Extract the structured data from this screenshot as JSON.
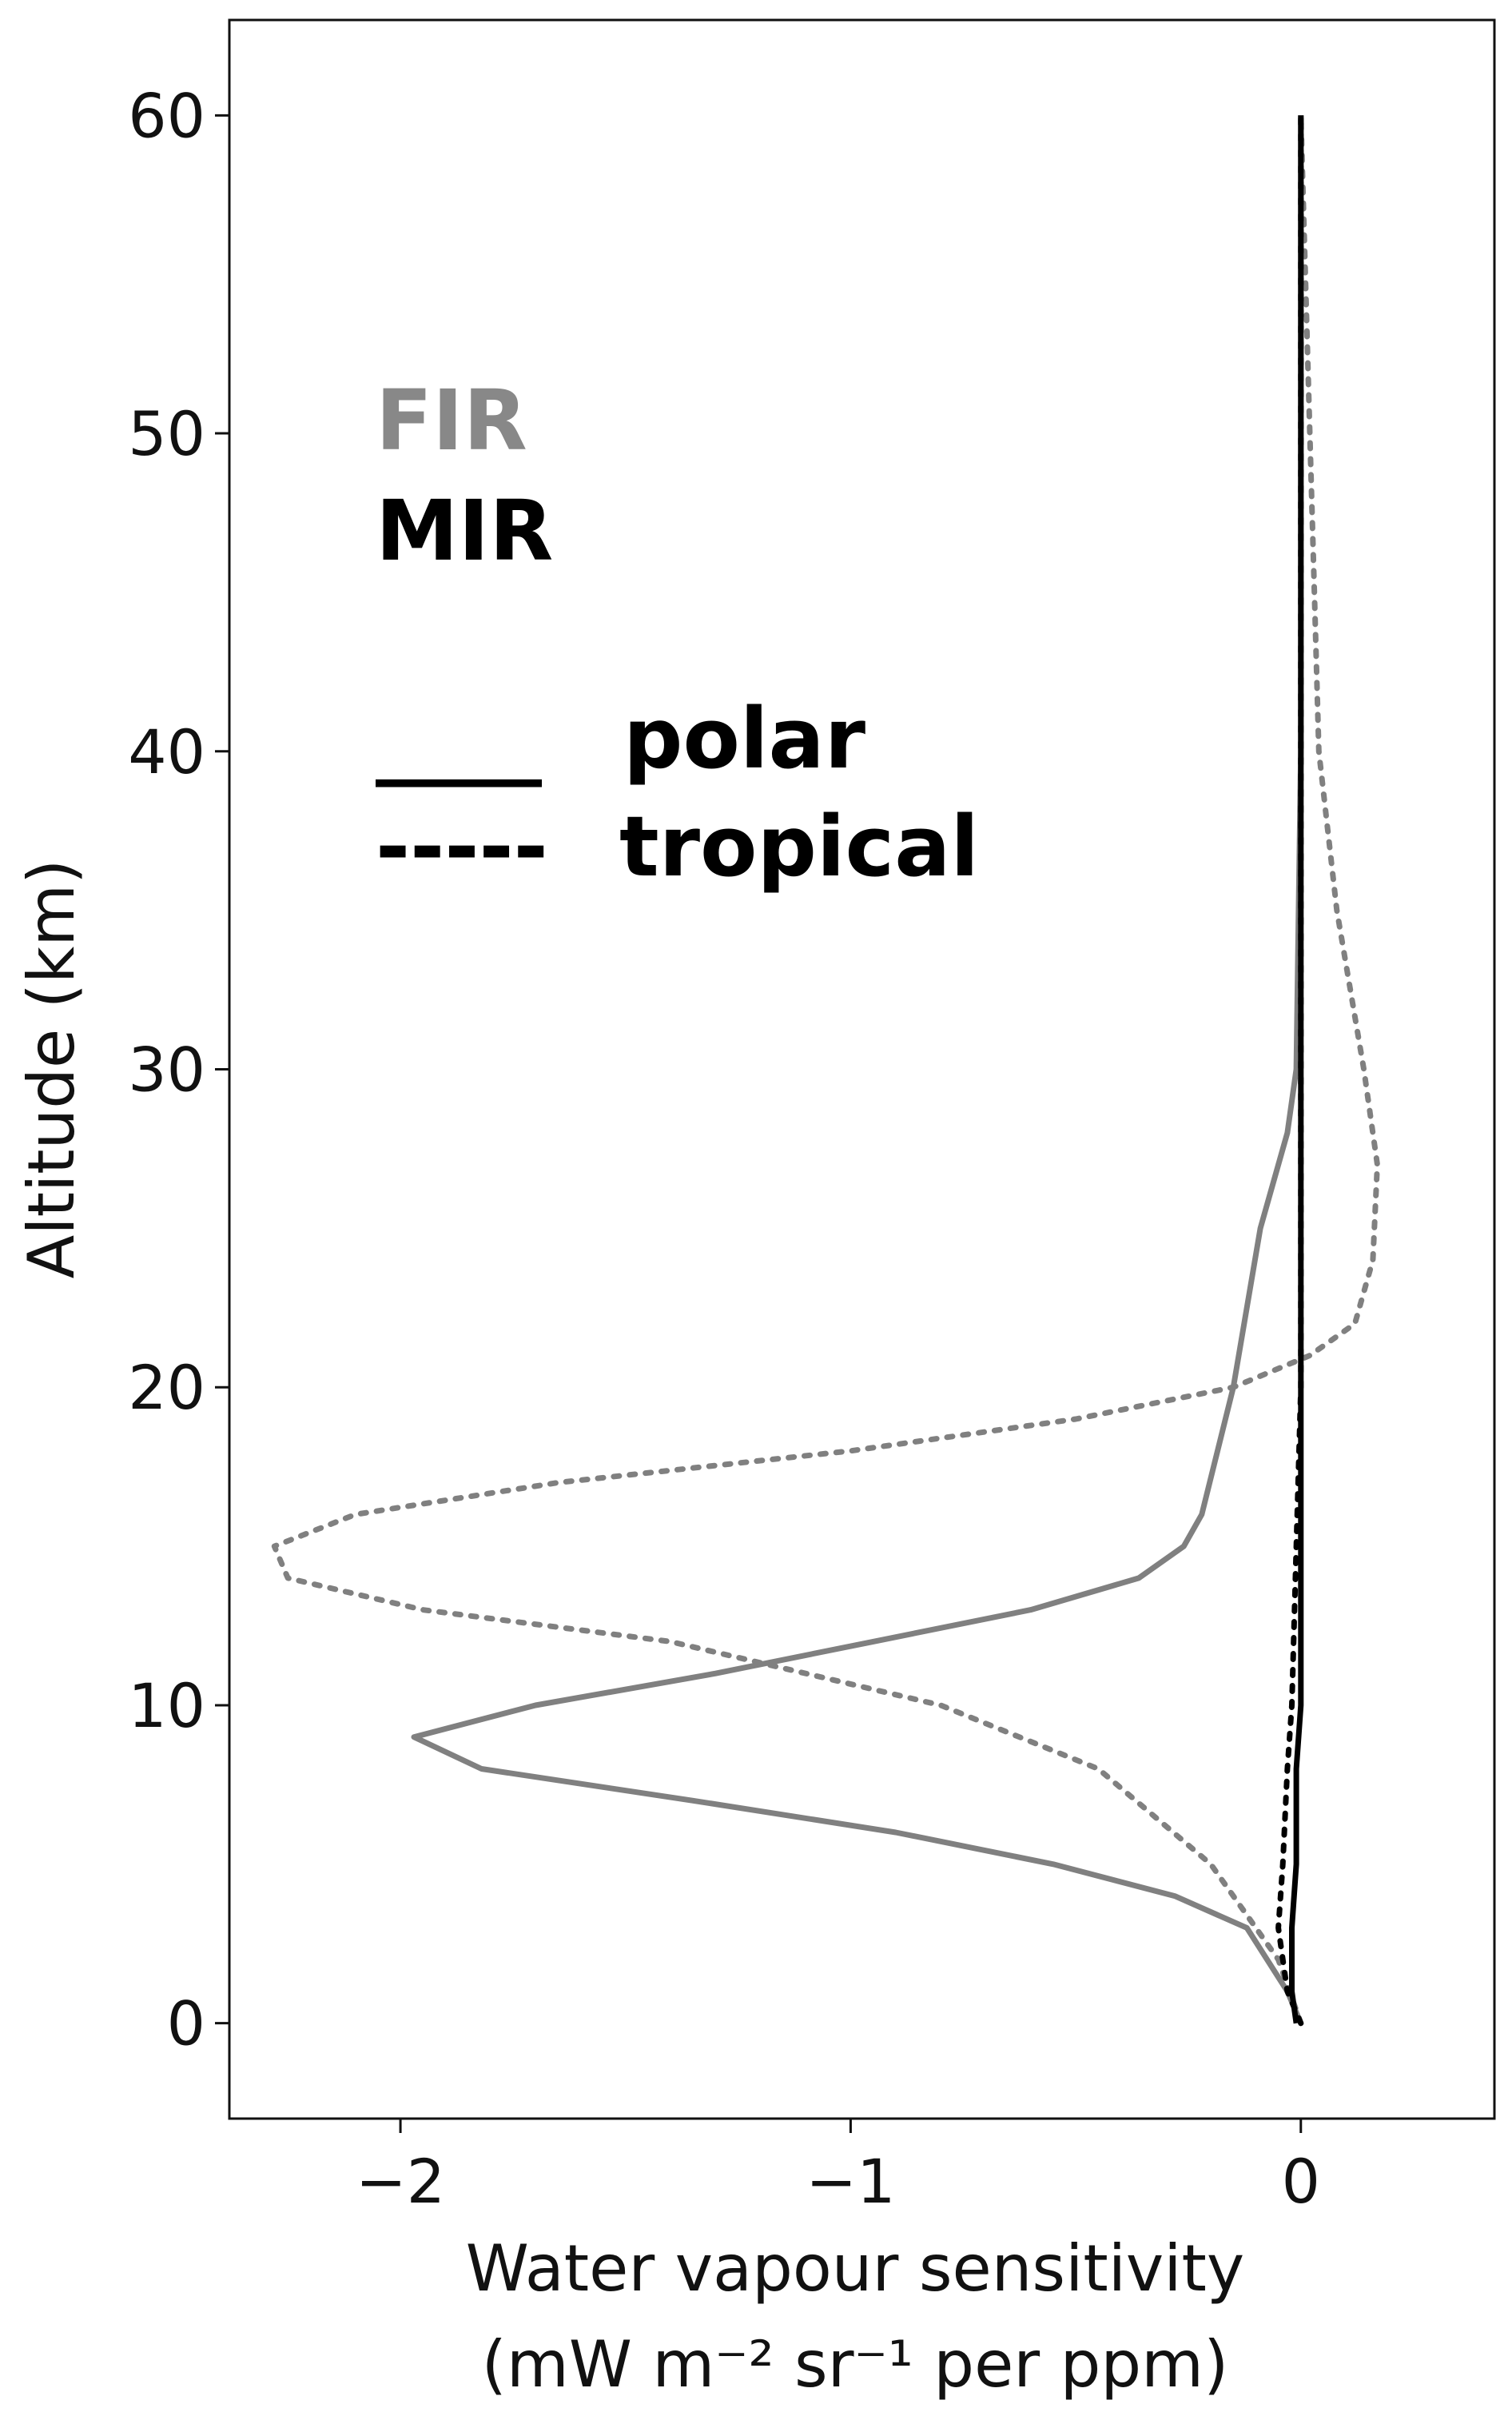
{
  "chart_data": {
    "type": "line",
    "title": "",
    "xlabel": "Water vapour sensitivity",
    "xlabel_units": "(mW m⁻² sr⁻¹ per ppm)",
    "ylabel": "Altitude (km)",
    "xlim": [
      -2.38,
      0.43
    ],
    "ylim": [
      -3,
      63
    ],
    "xticks": [
      -2,
      -1,
      0
    ],
    "xtick_labels": [
      "−2",
      "−1",
      "0"
    ],
    "yticks": [
      0,
      10,
      20,
      30,
      40,
      50,
      60
    ],
    "ytick_labels": [
      "0",
      "10",
      "20",
      "30",
      "40",
      "50",
      "60"
    ],
    "grid": false,
    "legend_placement": "upper-left",
    "legend": {
      "band_entries": [
        {
          "label": "FIR",
          "color": "#888888"
        },
        {
          "label": "MIR",
          "color": "#000000"
        }
      ],
      "style_entries": [
        {
          "label": "polar",
          "line_sample": "____",
          "dash": "solid"
        },
        {
          "label": "tropical",
          "line_sample": "-----",
          "dash": "dotted"
        }
      ]
    },
    "series": [
      {
        "band": "FIR",
        "profile": "polar",
        "color": "#808080",
        "dash": "solid",
        "points": [
          [
            0.0,
            0
          ],
          [
            -0.03,
            1
          ],
          [
            -0.12,
            3
          ],
          [
            -0.28,
            4
          ],
          [
            -0.55,
            5
          ],
          [
            -0.9,
            6
          ],
          [
            -1.35,
            7
          ],
          [
            -1.82,
            8
          ],
          [
            -1.97,
            9
          ],
          [
            -1.7,
            10
          ],
          [
            -1.3,
            11
          ],
          [
            -0.95,
            12
          ],
          [
            -0.6,
            13
          ],
          [
            -0.36,
            14
          ],
          [
            -0.26,
            15
          ],
          [
            -0.22,
            16
          ],
          [
            -0.15,
            20
          ],
          [
            -0.09,
            25
          ],
          [
            -0.03,
            28
          ],
          [
            -0.01,
            30
          ],
          [
            0.0,
            40
          ],
          [
            0.0,
            50
          ],
          [
            0.0,
            60
          ]
        ]
      },
      {
        "band": "FIR",
        "profile": "tropical",
        "color": "#808080",
        "dash": "dotted",
        "points": [
          [
            0.0,
            0
          ],
          [
            -0.05,
            2
          ],
          [
            -0.2,
            5
          ],
          [
            -0.45,
            8
          ],
          [
            -0.8,
            10
          ],
          [
            -1.4,
            12
          ],
          [
            -1.95,
            13
          ],
          [
            -2.25,
            14
          ],
          [
            -2.28,
            15
          ],
          [
            -2.1,
            16
          ],
          [
            -1.65,
            17
          ],
          [
            -1.0,
            18
          ],
          [
            -0.5,
            19
          ],
          [
            -0.15,
            20
          ],
          [
            0.02,
            21
          ],
          [
            0.12,
            22
          ],
          [
            0.16,
            24
          ],
          [
            0.17,
            27
          ],
          [
            0.14,
            30
          ],
          [
            0.08,
            35
          ],
          [
            0.04,
            40
          ],
          [
            0.03,
            45
          ],
          [
            0.02,
            50
          ],
          [
            0.01,
            55
          ],
          [
            0.0,
            60
          ]
        ]
      },
      {
        "band": "MIR",
        "profile": "polar",
        "color": "#000000",
        "dash": "solid",
        "points": [
          [
            -0.01,
            0
          ],
          [
            -0.02,
            1
          ],
          [
            -0.02,
            3
          ],
          [
            -0.01,
            5
          ],
          [
            -0.01,
            8
          ],
          [
            0.0,
            10
          ],
          [
            0.0,
            15
          ],
          [
            0.0,
            20
          ],
          [
            0.0,
            30
          ],
          [
            0.0,
            40
          ],
          [
            0.0,
            50
          ],
          [
            0.0,
            60
          ]
        ]
      },
      {
        "band": "MIR",
        "profile": "tropical",
        "color": "#000000",
        "dash": "dotted",
        "points": [
          [
            0.0,
            0
          ],
          [
            -0.03,
            1
          ],
          [
            -0.05,
            3
          ],
          [
            -0.04,
            5
          ],
          [
            -0.03,
            8
          ],
          [
            -0.02,
            10
          ],
          [
            -0.01,
            15
          ],
          [
            0.0,
            20
          ],
          [
            0.0,
            30
          ],
          [
            0.0,
            40
          ],
          [
            0.0,
            50
          ],
          [
            0.0,
            60
          ]
        ]
      }
    ]
  }
}
